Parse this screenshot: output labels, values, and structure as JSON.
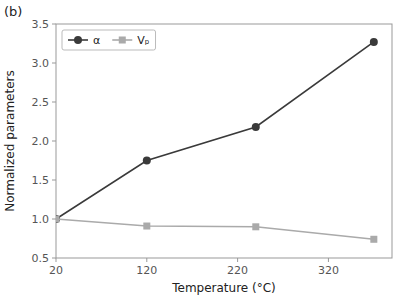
{
  "chart_data": {
    "type": "line",
    "x_label": "Temperature (°C)",
    "y_label": "Normalized parameters",
    "annotations": [
      "(b)"
    ],
    "x": [
      20,
      120,
      240,
      370
    ],
    "series": [
      {
        "name": "α",
        "color": "#3a3a3a",
        "marker": "circle",
        "line_style": "solid",
        "values": [
          1.0,
          1.75,
          2.18,
          3.27
        ]
      },
      {
        "name": "Vₚ",
        "color": "#aaaaaa",
        "marker": "square",
        "line_style": "solid",
        "values": [
          1.0,
          0.91,
          0.9,
          0.74
        ]
      }
    ],
    "xlim": [
      20,
      390
    ],
    "ylim": [
      0.5,
      3.5
    ],
    "xticks": [
      20,
      120,
      220,
      320
    ],
    "yticks": [
      0.5,
      {
        "value": 1.0,
        "label": "1.0"
      },
      1.5,
      {
        "value": 2.0,
        "label": "2.0"
      },
      2.5,
      {
        "value": 3.0,
        "label": "3.0"
      },
      3.5
    ],
    "grid": false,
    "legend": "top-left"
  }
}
